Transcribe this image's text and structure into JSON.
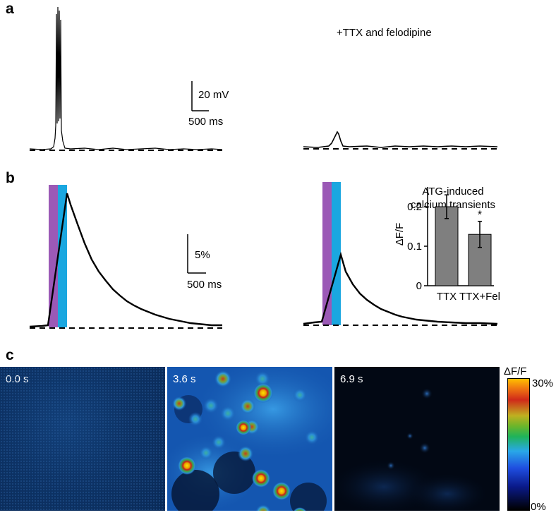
{
  "panels": {
    "a": {
      "label": "a",
      "annotation": "+TTX and felodipine",
      "scale_voltage": "20 mV",
      "scale_time": "500 ms"
    },
    "b": {
      "label": "b",
      "scale_percent": "5%",
      "scale_time": "500 ms"
    },
    "c": {
      "label": "c",
      "frames": [
        {
          "time": "0.0 s"
        },
        {
          "time": "3.6 s"
        },
        {
          "time": "6.9 s"
        }
      ],
      "colorbar": {
        "title": "ΔF/F",
        "max_label": "30%",
        "min_label": "0%"
      }
    }
  },
  "colors": {
    "stim_purple": "#9b59b6",
    "stim_cyan": "#1aa7e0",
    "bar_fill": "#7f7f7f"
  },
  "chart_data": {
    "type": "bar",
    "title": "ATG-induced calcium transients",
    "ylabel": "ΔF/F",
    "categories": [
      "TTX",
      "TTX+Fel"
    ],
    "values": [
      0.2,
      0.13
    ],
    "errors": [
      0.03,
      0.033
    ],
    "ylim": [
      0,
      0.25
    ],
    "yticks": [
      "0.2",
      "0.1",
      "0"
    ],
    "annotations": [
      "*"
    ]
  }
}
